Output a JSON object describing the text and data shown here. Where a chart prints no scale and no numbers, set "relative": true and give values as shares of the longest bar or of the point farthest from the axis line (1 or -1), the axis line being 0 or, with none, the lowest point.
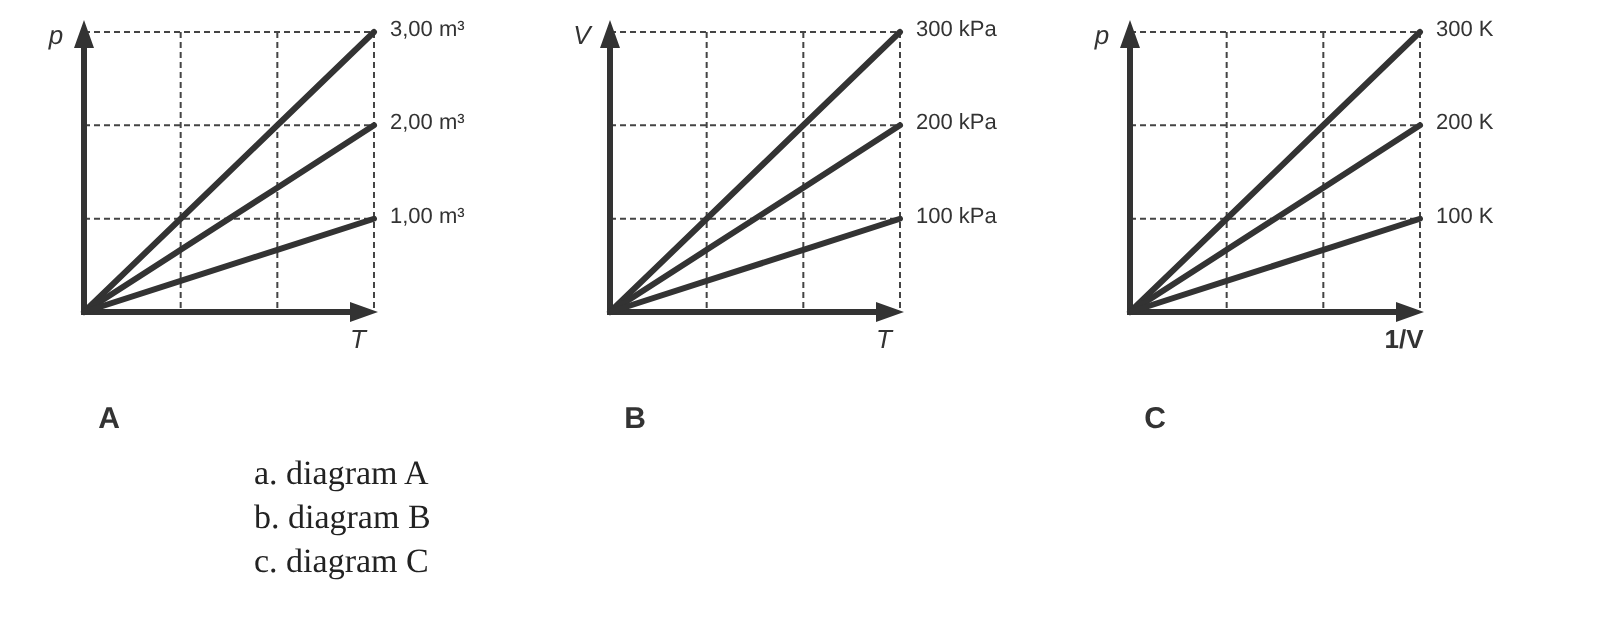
{
  "chart_data": [
    {
      "type": "line",
      "title": "A",
      "xlabel": "T",
      "ylabel": "p",
      "relative": true,
      "grid": true,
      "legend": false,
      "marker": "none",
      "line_style": "solid",
      "categories": [
        null,
        null,
        null,
        null
      ],
      "series": [
        {
          "name": "3,00 m³",
          "color": "#333333",
          "values": [
            0,
            0.333,
            0.667,
            1
          ]
        },
        {
          "name": "2,00 m³",
          "color": "#333333",
          "values": [
            0,
            0.222,
            0.444,
            0.667
          ]
        },
        {
          "name": "1,00 m³",
          "color": "#333333",
          "values": [
            0,
            0.111,
            0.222,
            0.333
          ]
        }
      ],
      "annotations": [
        "a.   diagram A",
        "b.   diagram B",
        "c.   diagram C"
      ]
    },
    {
      "type": "line",
      "title": "B",
      "xlabel": "T",
      "ylabel": "V",
      "relative": true,
      "grid": true,
      "legend": false,
      "marker": "none",
      "line_style": "solid",
      "categories": [
        null,
        null,
        null,
        null
      ],
      "series": [
        {
          "name": "300 kPa",
          "color": "#333333",
          "values": [
            0,
            0.333,
            0.667,
            1
          ]
        },
        {
          "name": "200 kPa",
          "color": "#333333",
          "values": [
            0,
            0.222,
            0.444,
            0.667
          ]
        },
        {
          "name": "100 kPa",
          "color": "#333333",
          "values": [
            0,
            0.111,
            0.222,
            0.333
          ]
        }
      ]
    },
    {
      "type": "line",
      "title": "C",
      "xlabel": "1/V",
      "ylabel": "p",
      "relative": true,
      "grid": true,
      "legend": false,
      "marker": "none",
      "line_style": "solid",
      "categories": [
        null,
        null,
        null,
        null
      ],
      "series": [
        {
          "name": "300 K",
          "color": "#333333",
          "values": [
            0,
            0.333,
            0.667,
            1
          ]
        },
        {
          "name": "200 K",
          "color": "#333333",
          "values": [
            0,
            0.222,
            0.444,
            0.667
          ]
        },
        {
          "name": "100 K",
          "color": "#333333",
          "values": [
            0,
            0.111,
            0.222,
            0.333
          ]
        }
      ]
    }
  ]
}
